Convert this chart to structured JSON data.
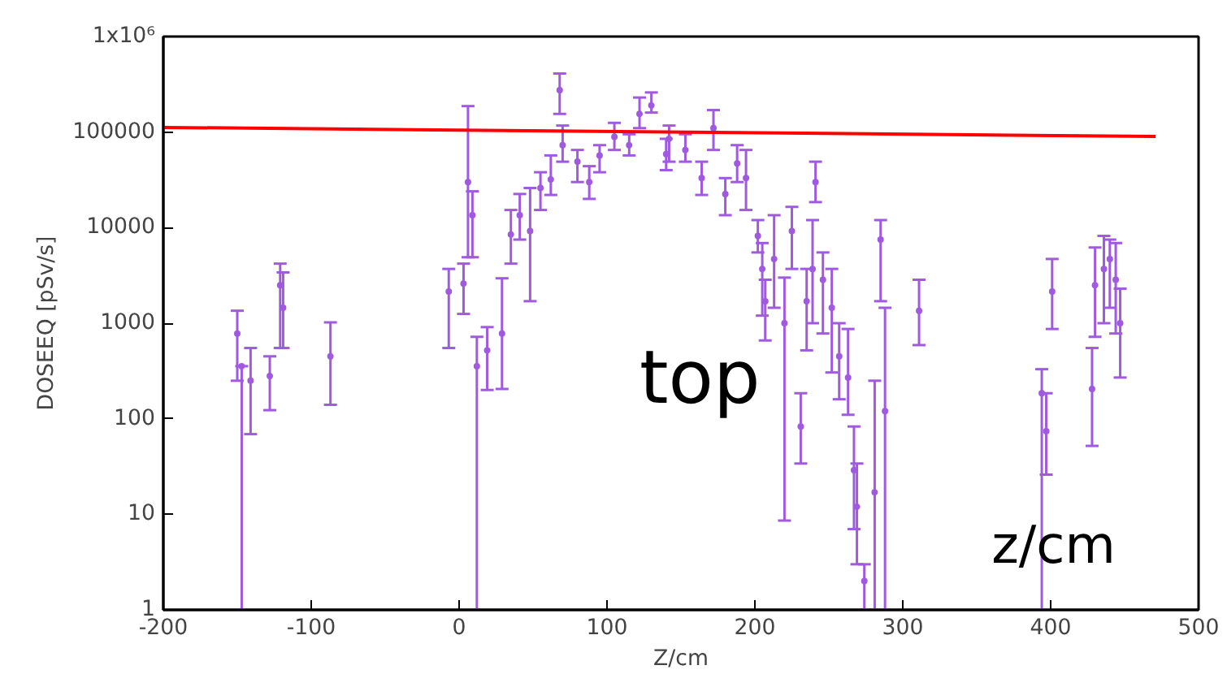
{
  "chart_data": {
    "type": "scatter",
    "xlabel": "Z/cm",
    "ylabel": "DOSEEQ [pSv/s]",
    "annotations": [
      "top",
      "z/cm"
    ],
    "log": "y",
    "grid": false,
    "xlim": [
      -200,
      500
    ],
    "xticks": [
      -200,
      -100,
      0,
      100,
      200,
      300,
      400,
      500
    ],
    "ylim": [
      1,
      1000000
    ],
    "yticks": [
      1,
      10,
      100,
      1000,
      10000,
      100000,
      {
        "value": 1000000,
        "label": "1x10⁶"
      }
    ],
    "series": [
      {
        "color": "#a05ae0",
        "marker": "circle",
        "x": [
          -150,
          -147,
          -141,
          -128,
          -121,
          -119,
          -87,
          -7,
          3,
          6,
          9,
          12,
          19,
          29,
          35,
          41,
          48,
          55,
          62,
          68,
          70,
          80,
          88,
          95,
          105,
          115,
          122,
          130,
          140,
          142,
          153,
          164,
          172,
          180,
          188,
          194,
          202,
          205,
          207,
          213,
          220,
          225,
          231,
          235,
          239,
          241,
          246,
          252,
          257,
          263,
          267,
          269,
          274,
          281,
          285,
          288,
          311,
          394,
          397,
          401,
          428,
          430,
          436,
          440,
          444,
          447
        ],
        "values": [
          780,
          355,
          250,
          280,
          2500,
          1450,
          450,
          2150,
          2600,
          30000,
          13500,
          355,
          520,
          780,
          8500,
          13500,
          9200,
          26000,
          32000,
          275000,
          73000,
          49000,
          30000,
          57000,
          89000,
          73000,
          155000,
          190000,
          59000,
          85000,
          65000,
          33000,
          110000,
          22500,
          47000,
          33000,
          8200,
          3700,
          1700,
          4700,
          1000,
          9200,
          83,
          1700,
          3700,
          30000,
          2850,
          1450,
          450,
          270,
          29,
          12,
          2,
          17,
          7500,
          120,
          1350,
          185,
          74,
          2150,
          205,
          2500,
          3700,
          4700,
          2850,
          1000
        ],
        "errors": [
          [
            250,
            1350
          ],
          [
            1,
            355
          ],
          [
            69,
            550
          ],
          [
            123,
            450
          ],
          [
            550,
            4200
          ],
          [
            550,
            3400
          ],
          [
            140,
            1020
          ],
          [
            550,
            3700
          ],
          [
            1250,
            4200
          ],
          [
            4900,
            187000
          ],
          [
            4900,
            24000
          ],
          [
            1,
            720
          ],
          [
            200,
            910
          ],
          [
            205,
            2950
          ],
          [
            4200,
            15300
          ],
          [
            7500,
            22500
          ],
          [
            1700,
            26000
          ],
          [
            15300,
            38000
          ],
          [
            22000,
            57000
          ],
          [
            155000,
            410000
          ],
          [
            49000,
            117000
          ],
          [
            30000,
            65000
          ],
          [
            20000,
            44000
          ],
          [
            38000,
            73000
          ],
          [
            65000,
            125000
          ],
          [
            57000,
            95000
          ],
          [
            110000,
            230000
          ],
          [
            160000,
            260000
          ],
          [
            40000,
            85000
          ],
          [
            49000,
            117000
          ],
          [
            49000,
            95000
          ],
          [
            22000,
            49000
          ],
          [
            65000,
            170000
          ],
          [
            13500,
            33000
          ],
          [
            30000,
            73000
          ],
          [
            15300,
            65000
          ],
          [
            5500,
            12000
          ],
          [
            1200,
            6900
          ],
          [
            660,
            2850
          ],
          [
            1450,
            13500
          ],
          [
            8.6,
            3000
          ],
          [
            3700,
            16500
          ],
          [
            34,
            185
          ],
          [
            520,
            3700
          ],
          [
            1000,
            12000
          ],
          [
            18500,
            49000
          ],
          [
            780,
            5500
          ],
          [
            305,
            3700
          ],
          [
            160,
            1000
          ],
          [
            110,
            870
          ],
          [
            7,
            83
          ],
          [
            3,
            34
          ],
          [
            1,
            3
          ],
          [
            1,
            250
          ],
          [
            1700,
            12000
          ],
          [
            1,
            1450
          ],
          [
            590,
            2850
          ],
          [
            1,
            330
          ],
          [
            26,
            185
          ],
          [
            870,
            4700
          ],
          [
            52,
            550
          ],
          [
            720,
            6200
          ],
          [
            1000,
            8200
          ],
          [
            1450,
            7500
          ],
          [
            780,
            6900
          ],
          [
            270,
            2300
          ]
        ]
      },
      {
        "type": "line",
        "color": "#ff0000",
        "x": [
          -200,
          471
        ],
        "values": [
          112000,
          90000
        ]
      }
    ]
  }
}
